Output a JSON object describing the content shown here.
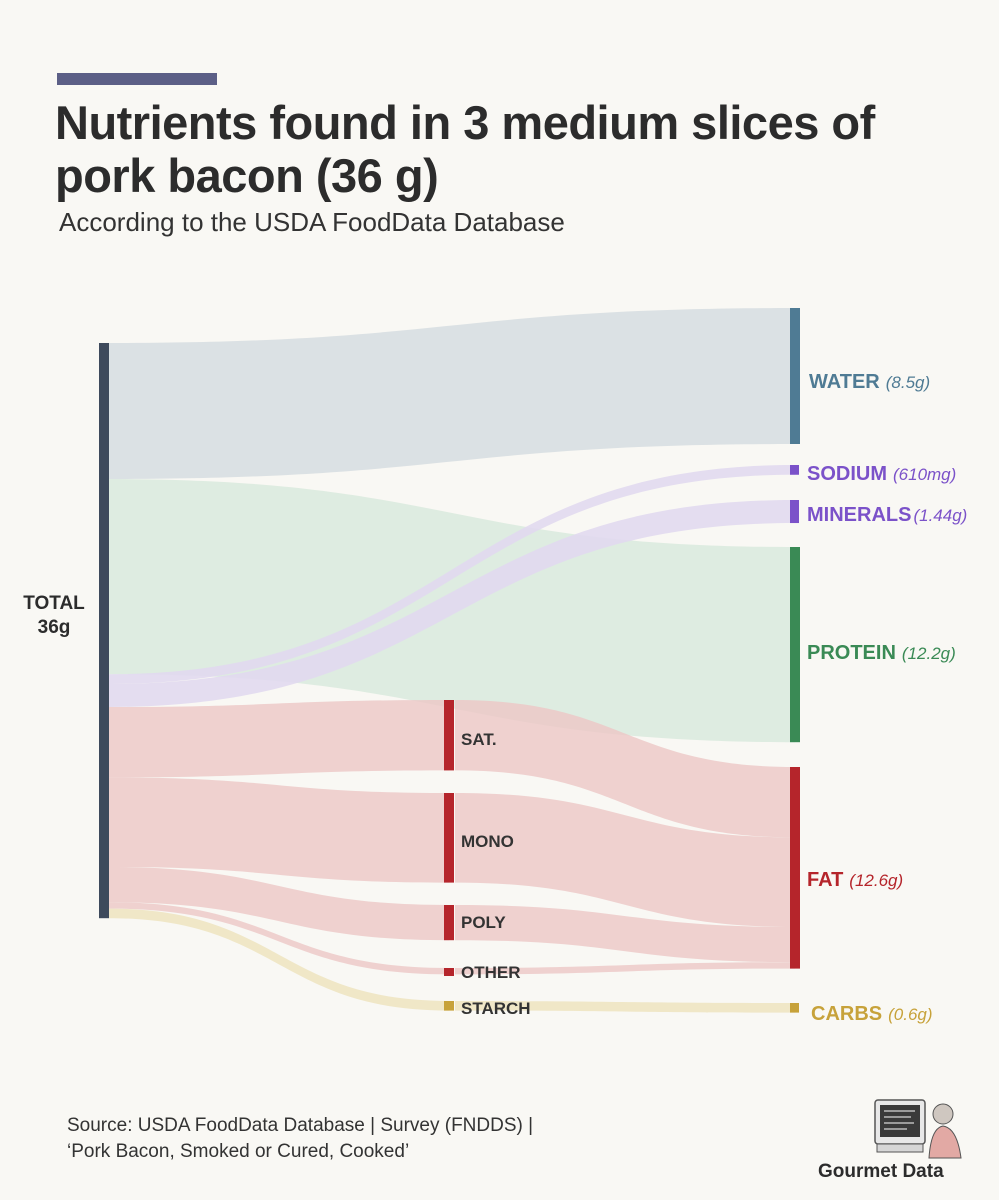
{
  "header": {
    "title": "Nutrients found in 3 medium slices of pork bacon (36 g)",
    "subtitle": "According to the USDA FoodData Database"
  },
  "footer": {
    "source_line1": "Source: USDA FoodData Database | Survey (FNDDS) |",
    "source_line2": "‘Pork Bacon, Smoked or Cured, Cooked’",
    "brand": "Gourmet Data"
  },
  "colors": {
    "background": "#f9f8f4",
    "title_accent": "#5c5f86",
    "total_node": "#3e4a5c",
    "water": "#4f7b94",
    "water_link": "#d6dde0",
    "minerals": "#7b52c9",
    "minerals_link": "#e1d9f0",
    "protein": "#3a8a55",
    "protein_link": "#d9eadd",
    "fat": "#b5252b",
    "fat_link": "#ecc7c5",
    "carbs": "#c7a23a",
    "carbs_link": "#efe6c4"
  },
  "chart_data": {
    "type": "sankey",
    "title": "Nutrients found in 3 medium slices of pork bacon (36 g)",
    "subtitle": "According to the USDA FoodData Database",
    "unit": "g",
    "source_node": {
      "id": "total",
      "label": "TOTAL",
      "value_label": "36g",
      "value": 36
    },
    "nodes": [
      {
        "id": "water",
        "label": "WATER",
        "value_label": "(8.5g)",
        "value": 8.5,
        "column": "right",
        "color_key": "water"
      },
      {
        "id": "sodium",
        "label": "SODIUM",
        "value_label": "(610mg)",
        "value": 0.61,
        "column": "right",
        "color_key": "minerals"
      },
      {
        "id": "minerals",
        "label": "MINERALS",
        "value_label": "(1.44g)",
        "value": 1.44,
        "column": "right",
        "color_key": "minerals"
      },
      {
        "id": "protein",
        "label": "PROTEIN",
        "value_label": "(12.2g)",
        "value": 12.2,
        "column": "right",
        "color_key": "protein"
      },
      {
        "id": "sat",
        "label": "SAT.",
        "value": 4.4,
        "column": "middle",
        "color_key": "fat"
      },
      {
        "id": "mono",
        "label": "MONO",
        "value": 5.6,
        "column": "middle",
        "color_key": "fat"
      },
      {
        "id": "poly",
        "label": "POLY",
        "value": 2.2,
        "column": "middle",
        "color_key": "fat"
      },
      {
        "id": "other",
        "label": "OTHER",
        "value": 0.4,
        "column": "middle",
        "color_key": "fat"
      },
      {
        "id": "starch",
        "label": "STARCH",
        "value": 0.6,
        "column": "middle",
        "color_key": "carbs"
      },
      {
        "id": "fat",
        "label": "FAT",
        "value_label": "(12.6g)",
        "value": 12.6,
        "column": "right",
        "color_key": "fat"
      },
      {
        "id": "carbs",
        "label": "CARBS",
        "value_label": "(0.6g)",
        "value": 0.6,
        "column": "right",
        "color_key": "carbs"
      }
    ],
    "links": [
      {
        "source": "total",
        "target": "water",
        "value": 8.5
      },
      {
        "source": "total",
        "target": "protein",
        "value": 12.2
      },
      {
        "source": "total",
        "target": "sodium",
        "value": 0.61
      },
      {
        "source": "total",
        "target": "minerals",
        "value": 1.44
      },
      {
        "source": "total",
        "target": "sat",
        "value": 4.4
      },
      {
        "source": "total",
        "target": "mono",
        "value": 5.6
      },
      {
        "source": "total",
        "target": "poly",
        "value": 2.2
      },
      {
        "source": "total",
        "target": "other",
        "value": 0.4
      },
      {
        "source": "total",
        "target": "starch",
        "value": 0.6
      },
      {
        "source": "sat",
        "target": "fat",
        "value": 4.4
      },
      {
        "source": "mono",
        "target": "fat",
        "value": 5.6
      },
      {
        "source": "poly",
        "target": "fat",
        "value": 2.2
      },
      {
        "source": "other",
        "target": "fat",
        "value": 0.4
      },
      {
        "source": "starch",
        "target": "carbs",
        "value": 0.6
      }
    ]
  }
}
